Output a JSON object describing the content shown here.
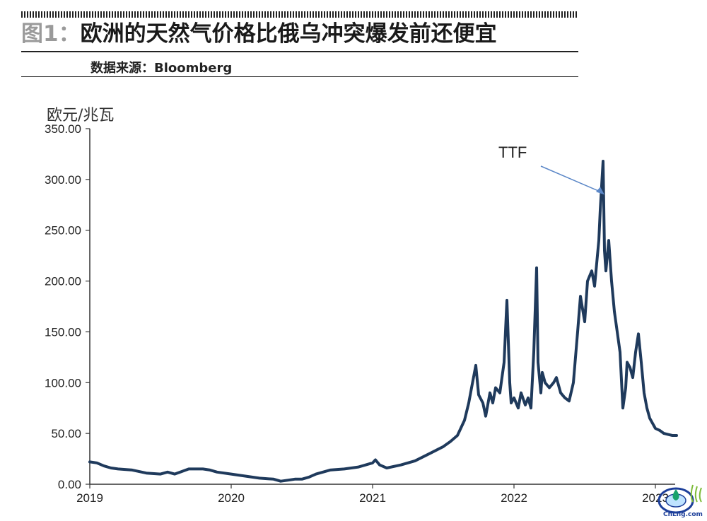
{
  "figure": {
    "number": "图1：",
    "title": "欧洲的天然气价格比俄乌冲突爆发前还便宜",
    "source": "数据来源：Bloomberg"
  },
  "watermark": {
    "text": "CnLng.com"
  },
  "colors": {
    "line": "#1f3a5c",
    "arrow": "#5b87c7",
    "axis": "#333333"
  },
  "chart_data": {
    "type": "line",
    "ylabel": "欧元/兆瓦",
    "ylim": [
      0,
      350
    ],
    "yticks": [
      "0.00",
      "50.00",
      "100.00",
      "150.00",
      "200.00",
      "250.00",
      "300.00",
      "350.00"
    ],
    "xlim": [
      2019.0,
      2023.2
    ],
    "xticks": [
      "2019",
      "2020",
      "2021",
      "2022",
      "2023"
    ],
    "annotation": {
      "text": "TTF",
      "x": 2022.64,
      "y": 285
    },
    "series": [
      {
        "name": "TTF",
        "x": [
          2019.0,
          2019.05,
          2019.1,
          2019.15,
          2019.2,
          2019.3,
          2019.4,
          2019.5,
          2019.55,
          2019.6,
          2019.7,
          2019.8,
          2019.85,
          2019.9,
          2020.0,
          2020.1,
          2020.2,
          2020.3,
          2020.35,
          2020.4,
          2020.45,
          2020.5,
          2020.55,
          2020.6,
          2020.7,
          2020.8,
          2020.9,
          2021.0,
          2021.02,
          2021.05,
          2021.1,
          2021.2,
          2021.3,
          2021.4,
          2021.5,
          2021.55,
          2021.6,
          2021.65,
          2021.68,
          2021.7,
          2021.73,
          2021.75,
          2021.78,
          2021.8,
          2021.83,
          2021.85,
          2021.87,
          2021.9,
          2021.93,
          2021.95,
          2021.97,
          2021.98,
          2022.0,
          2022.03,
          2022.05,
          2022.08,
          2022.1,
          2022.12,
          2022.14,
          2022.16,
          2022.17,
          2022.19,
          2022.2,
          2022.22,
          2022.25,
          2022.28,
          2022.3,
          2022.33,
          2022.36,
          2022.39,
          2022.42,
          2022.45,
          2022.47,
          2022.5,
          2022.52,
          2022.55,
          2022.57,
          2022.6,
          2022.61,
          2022.63,
          2022.64,
          2022.65,
          2022.67,
          2022.69,
          2022.71,
          2022.73,
          2022.75,
          2022.77,
          2022.79,
          2022.8,
          2022.82,
          2022.84,
          2022.86,
          2022.88,
          2022.9,
          2022.92,
          2022.94,
          2022.96,
          2022.98,
          2023.0,
          2023.03,
          2023.06,
          2023.09,
          2023.12,
          2023.15
        ],
        "y": [
          22,
          21,
          18,
          16,
          15,
          14,
          11,
          10,
          12,
          10,
          15,
          15,
          14,
          12,
          10,
          8,
          6,
          5,
          3,
          4,
          5,
          5,
          7,
          10,
          14,
          15,
          17,
          21,
          24,
          19,
          16,
          19,
          23,
          30,
          37,
          42,
          48,
          63,
          80,
          95,
          117,
          88,
          80,
          67,
          90,
          80,
          95,
          90,
          120,
          181,
          100,
          80,
          85,
          75,
          90,
          78,
          85,
          75,
          130,
          213,
          120,
          90,
          110,
          100,
          95,
          100,
          105,
          90,
          85,
          82,
          100,
          150,
          185,
          160,
          200,
          210,
          195,
          240,
          270,
          318,
          230,
          210,
          240,
          200,
          170,
          150,
          130,
          75,
          95,
          120,
          115,
          105,
          130,
          148,
          120,
          90,
          75,
          65,
          60,
          55,
          53,
          50,
          49,
          48,
          48
        ]
      }
    ]
  }
}
